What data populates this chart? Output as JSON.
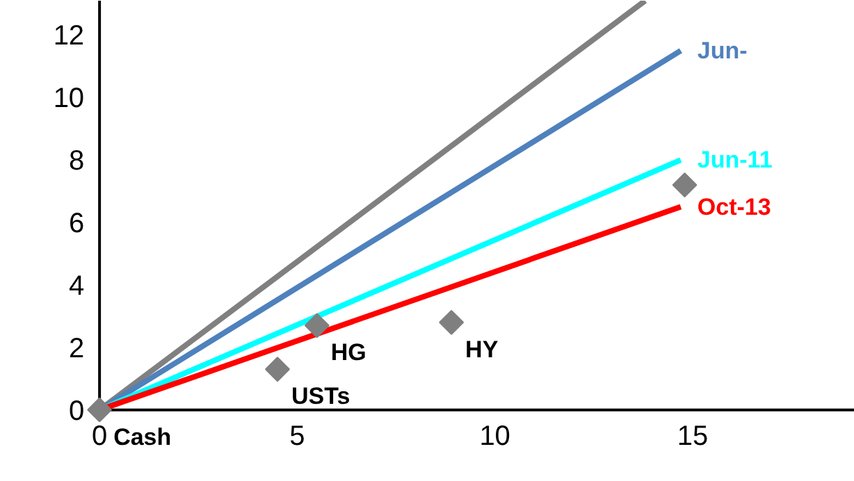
{
  "chart_data": {
    "type": "line",
    "xlim": [
      -2.5,
      19.1
    ],
    "ylim": [
      -2.3,
      13.1
    ],
    "xticks": [
      0,
      5,
      10,
      15
    ],
    "yticks": [
      0,
      2,
      4,
      6,
      8,
      10,
      12
    ],
    "grid": false,
    "marker": "none",
    "line_style": "solid",
    "series": [
      {
        "color": "#808080",
        "x": [
          0,
          13.8
        ],
        "values": [
          0,
          13.1
        ]
      },
      {
        "name": "Jun-",
        "color": "#4f81bd",
        "x": [
          0,
          14.7
        ],
        "values": [
          0,
          11.5
        ]
      },
      {
        "name": "Jun-11",
        "color": "#00ffff",
        "x": [
          0,
          14.7
        ],
        "values": [
          0,
          8.0
        ]
      },
      {
        "name": "Oct-13",
        "color": "#ff0000",
        "x": [
          0,
          14.7
        ],
        "values": [
          0,
          6.5
        ]
      },
      {
        "type": "scatter",
        "marker": "diamond",
        "color": "#7f7f7f",
        "x": [
          0,
          4.5,
          5.5,
          8.9,
          14.8
        ],
        "values": [
          0,
          1.3,
          2.7,
          2.8,
          7.2
        ]
      }
    ],
    "annotations": [
      {
        "text": "Cash",
        "x": 0,
        "y": 0
      },
      {
        "text": "USTs",
        "x": 4.5,
        "y": 1.3
      },
      {
        "text": "HG",
        "x": 5.5,
        "y": 2.7
      },
      {
        "text": "HY",
        "x": 8.9,
        "y": 2.8
      }
    ]
  }
}
